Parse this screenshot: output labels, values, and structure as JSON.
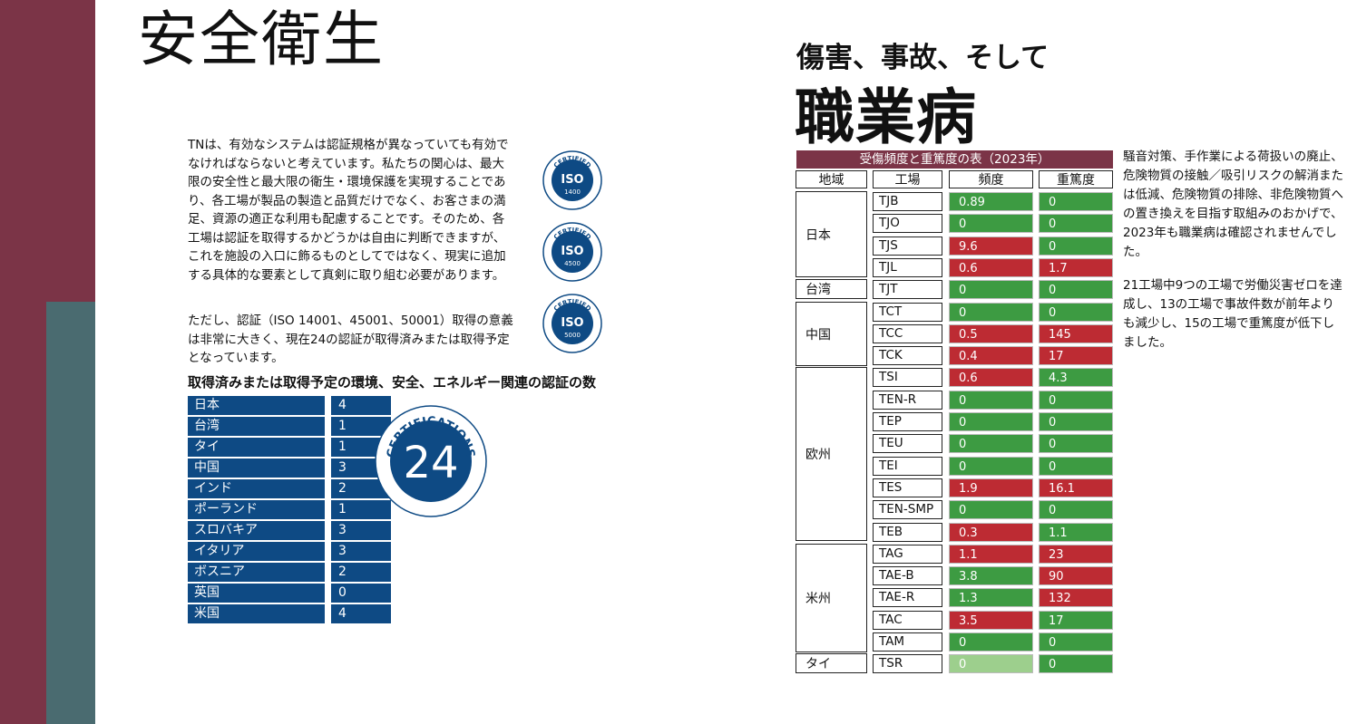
{
  "left": {
    "title": "安全衛生",
    "intro": "TNは、有効なシステムは認証規格が異なっていても有効でなければならないと考えています。私たちの関心は、最大限の安全性と最大限の衛生・環境保護を実現することであり、各工場が製品の製造と品質だけでなく、お客さまの満足、資源の適正な利用も配慮することです。そのため、各工場は認証を取得するかどうかは自由に判断できますが、これを施設の入口に飾るものとしてではなく、現実に追加する具体的な要素として真剣に取り組む必要があります。",
    "note": "ただし、認証（ISO 14001、45001、50001）取得の意義は非常に大きく、現在24の認証が取得済みまたは取得予定となっています。",
    "iso_badges": [
      {
        "top": "CERTIFIED",
        "mid": "ISO",
        "num": "1400"
      },
      {
        "top": "CERTIFIED",
        "mid": "ISO",
        "num": "4500"
      },
      {
        "top": "CERTIFIED",
        "mid": "ISO",
        "num": "5000"
      }
    ],
    "cert_heading": "取得済みまたは取得予定の環境、安全、エネルギー関連の認証の数",
    "certs": [
      {
        "country": "日本",
        "count": "4"
      },
      {
        "country": "台湾",
        "count": "1"
      },
      {
        "country": "タイ",
        "count": "1"
      },
      {
        "country": "中国",
        "count": "3"
      },
      {
        "country": "インド",
        "count": "2"
      },
      {
        "country": "ポーランド",
        "count": "1"
      },
      {
        "country": "スロバキア",
        "count": "3"
      },
      {
        "country": "イタリア",
        "count": "3"
      },
      {
        "country": "ボスニア",
        "count": "2"
      },
      {
        "country": "英国",
        "count": "0"
      },
      {
        "country": "米国",
        "count": "4"
      }
    ],
    "badge": {
      "arc_text": "CERTIFICATIONS",
      "number": "24"
    }
  },
  "right": {
    "subtitle": "傷害、事故、そして",
    "title": "職業病",
    "table_title": "受傷頻度と重篤度の表（2023年）",
    "headers": {
      "region": "地域",
      "plant": "工場",
      "freq": "頻度",
      "sev": "重篤度"
    },
    "regions": [
      {
        "name": "日本",
        "rows": 4
      },
      {
        "name": "台湾",
        "rows": 1
      },
      {
        "name": "中国",
        "rows": 3
      },
      {
        "name": "欧州",
        "rows": 8
      },
      {
        "name": "米州",
        "rows": 5
      },
      {
        "name": "タイ",
        "rows": 1
      }
    ],
    "rows": [
      {
        "plant": "TJB",
        "freq": "0.89",
        "freq_color": "green",
        "sev": "0",
        "sev_color": "green"
      },
      {
        "plant": "TJO",
        "freq": "0",
        "freq_color": "green",
        "sev": "0",
        "sev_color": "green"
      },
      {
        "plant": "TJS",
        "freq": "9.6",
        "freq_color": "red",
        "sev": "0",
        "sev_color": "green"
      },
      {
        "plant": "TJL",
        "freq": "0.6",
        "freq_color": "red",
        "sev": "1.7",
        "sev_color": "red"
      },
      {
        "plant": "TJT",
        "freq": "0",
        "freq_color": "green",
        "sev": "0",
        "sev_color": "green"
      },
      {
        "plant": "TCT",
        "freq": "0",
        "freq_color": "green",
        "sev": "0",
        "sev_color": "green"
      },
      {
        "plant": "TCC",
        "freq": "0.5",
        "freq_color": "red",
        "sev": "145",
        "sev_color": "red"
      },
      {
        "plant": "TCK",
        "freq": "0.4",
        "freq_color": "red",
        "sev": "17",
        "sev_color": "red"
      },
      {
        "plant": "TSI",
        "freq": "0.6",
        "freq_color": "red",
        "sev": "4.3",
        "sev_color": "green"
      },
      {
        "plant": "TEN-R",
        "freq": "0",
        "freq_color": "green",
        "sev": "0",
        "sev_color": "green"
      },
      {
        "plant": "TEP",
        "freq": "0",
        "freq_color": "green",
        "sev": "0",
        "sev_color": "green"
      },
      {
        "plant": "TEU",
        "freq": "0",
        "freq_color": "green",
        "sev": "0",
        "sev_color": "green"
      },
      {
        "plant": "TEI",
        "freq": "0",
        "freq_color": "green",
        "sev": "0",
        "sev_color": "green"
      },
      {
        "plant": "TES",
        "freq": "1.9",
        "freq_color": "red",
        "sev": "16.1",
        "sev_color": "red"
      },
      {
        "plant": "TEN-SMP",
        "freq": "0",
        "freq_color": "green",
        "sev": "0",
        "sev_color": "green"
      },
      {
        "plant": "TEB",
        "freq": "0.3",
        "freq_color": "red",
        "sev": "1.1",
        "sev_color": "green"
      },
      {
        "plant": "TAG",
        "freq": "1.1",
        "freq_color": "red",
        "sev": "23",
        "sev_color": "red"
      },
      {
        "plant": "TAE-B",
        "freq": "3.8",
        "freq_color": "green",
        "sev": "90",
        "sev_color": "red"
      },
      {
        "plant": "TAE-R",
        "freq": "1.3",
        "freq_color": "green",
        "sev": "132",
        "sev_color": "red"
      },
      {
        "plant": "TAC",
        "freq": "3.5",
        "freq_color": "red",
        "sev": "17",
        "sev_color": "green"
      },
      {
        "plant": "TAM",
        "freq": "0",
        "freq_color": "green",
        "sev": "0",
        "sev_color": "green"
      },
      {
        "plant": "TSR",
        "freq": "0",
        "freq_color": "pale",
        "sev": "0",
        "sev_color": "green"
      }
    ],
    "side_text_1": "騒音対策、手作業による荷扱いの廃止、危険物質の接触／吸引リスクの解消または低減、危険物質の排除、非危険物質への置き換えを目指す取組みのおかげで、2023年も職業病は確認されませんでした。",
    "side_text_2": "21工場中9つの工場で労働災害ゼロを達成し、13の工場で事故件数が前年よりも減少し、15の工場で重篤度が低下しました。"
  }
}
